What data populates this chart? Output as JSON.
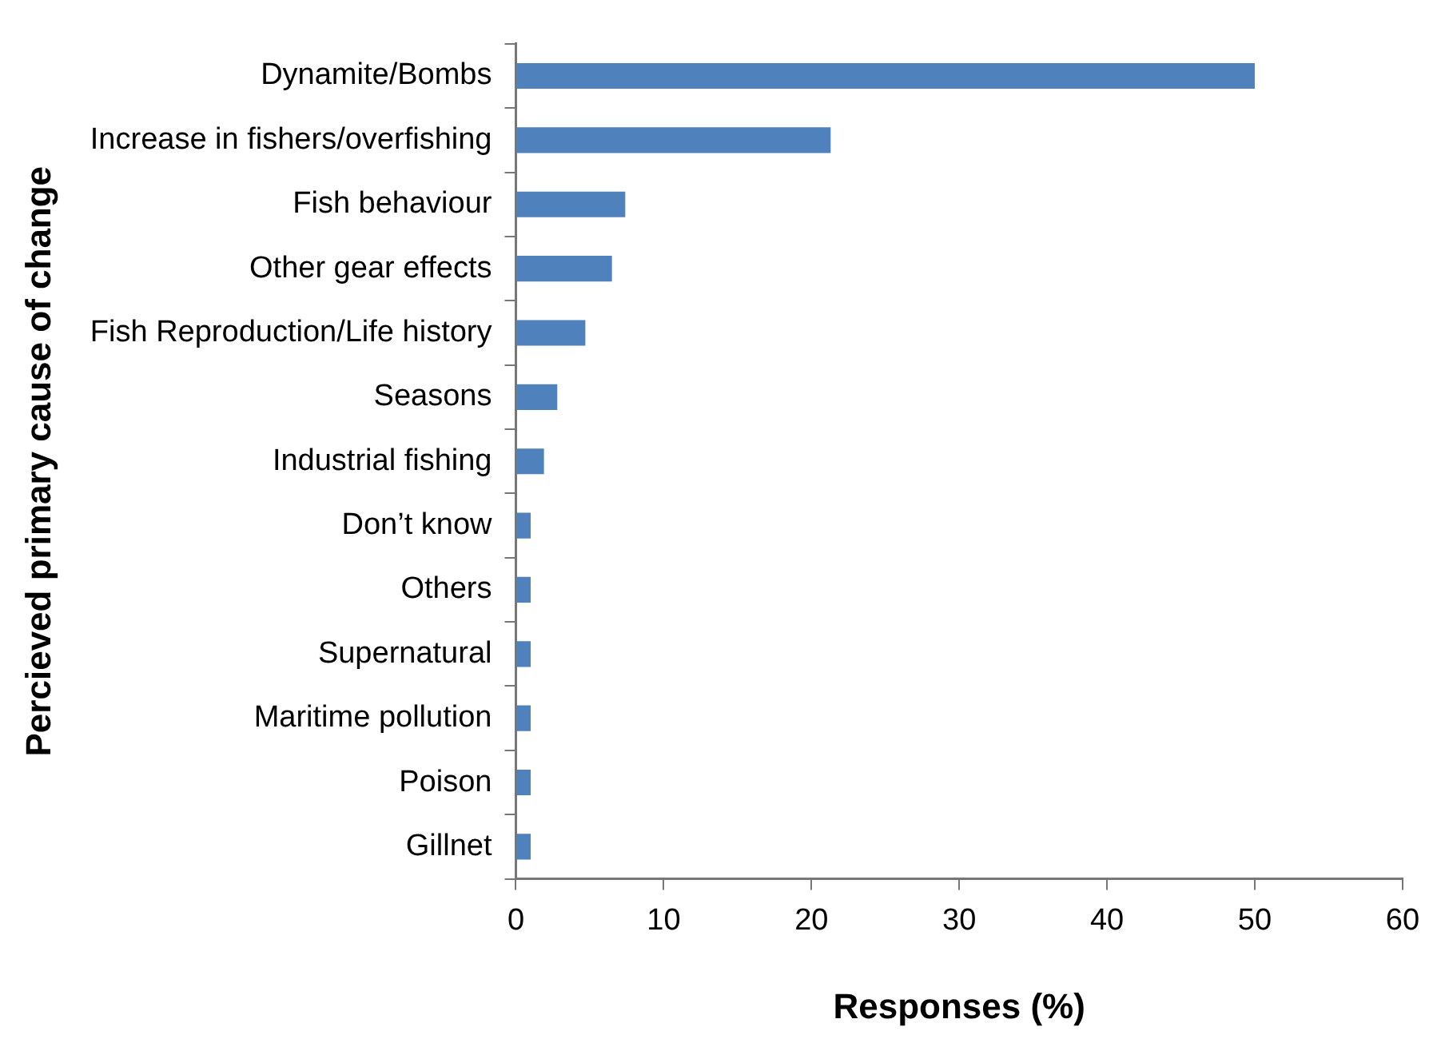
{
  "chart_data": {
    "type": "bar",
    "orientation": "horizontal",
    "xlabel": "Responses (%)",
    "ylabel": "Percieved primary cause of change",
    "categories": [
      "Dynamite/Bombs",
      "Increase in fishers/overfishing",
      "Fish behaviour",
      "Other gear effects",
      "Fish Reproduction/Life history",
      "Seasons",
      "Industrial fishing",
      "Don’t know",
      "Others",
      "Supernatural",
      "Maritime pollution",
      "Poison",
      "Gillnet"
    ],
    "values": [
      50,
      21.3,
      7.4,
      6.5,
      4.7,
      2.8,
      1.9,
      1,
      1,
      1,
      1,
      1,
      1
    ],
    "color": "#4f81bd",
    "xlim": [
      0,
      60
    ],
    "xticks": [
      0,
      10,
      20,
      30,
      40,
      50,
      60
    ],
    "grid": false,
    "legend": false
  }
}
